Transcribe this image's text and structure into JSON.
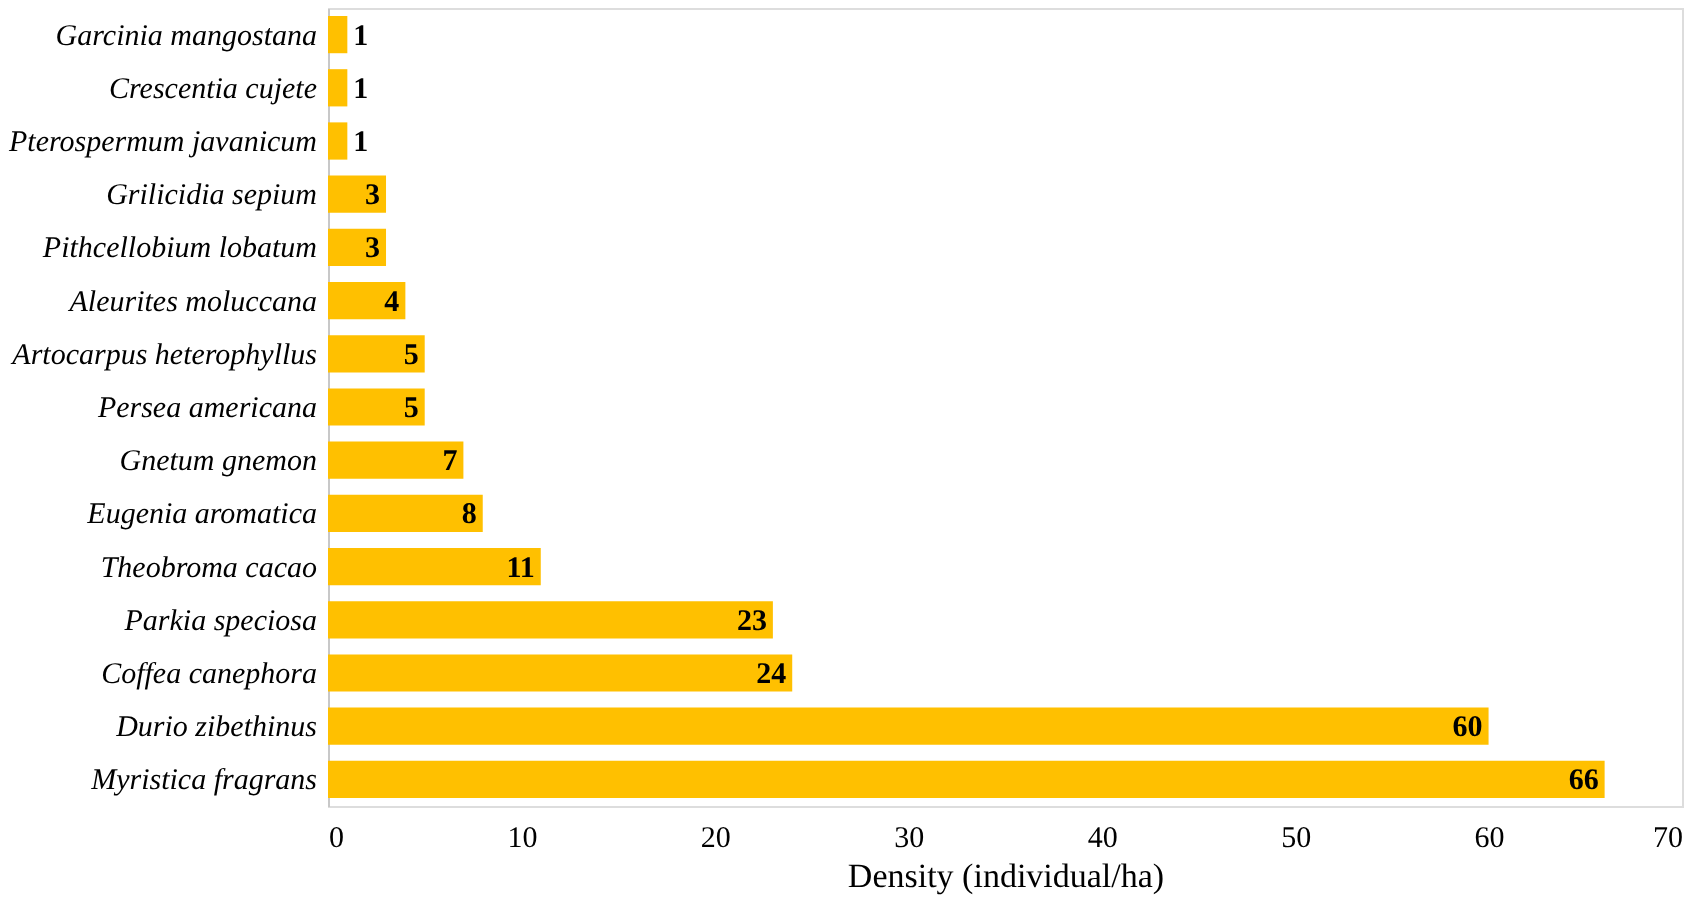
{
  "chart_data": {
    "type": "bar",
    "orientation": "horizontal",
    "xlabel": "Density (individual/ha)",
    "categories": [
      "Garcinia mangostana",
      "Crescentia cujete",
      "Pterospermum javanicum",
      "Grilicidia sepium",
      "Pithcellobium lobatum",
      "Aleurites moluccana",
      "Artocarpus heterophyllus",
      "Persea americana",
      "Gnetum gnemon",
      "Eugenia aromatica",
      "Theobroma cacao",
      "Parkia speciosa",
      "Coffea canephora",
      "Durio zibethinus",
      "Myristica fragrans"
    ],
    "values": [
      1,
      1,
      1,
      3,
      3,
      4,
      5,
      5,
      7,
      8,
      11,
      23,
      24,
      60,
      66
    ],
    "color": "#ffc000",
    "xlim": [
      0,
      70
    ],
    "xticks": [
      0,
      10,
      20,
      30,
      40,
      50,
      60,
      70
    ],
    "data_labels": true,
    "grid": false
  }
}
